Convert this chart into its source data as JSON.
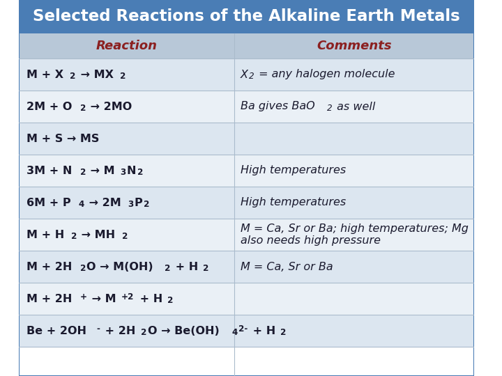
{
  "title": "Selected Reactions of the Alkaline Earth Metals",
  "title_bg": "#4a7db5",
  "title_color": "#ffffff",
  "header_bg": "#b8c8d8",
  "header_color": "#8b2020",
  "col1_header": "Reaction",
  "col2_header": "Comments",
  "row_bg_odd": "#dce6f0",
  "row_bg_even": "#eaf0f6",
  "text_color": "#1a1a2e",
  "comment_color": "#1a1a2e",
  "rows": [
    {
      "reaction_parts": [
        {
          "text": "M + X",
          "style": "bold"
        },
        {
          "text": "2",
          "style": "bold_sub"
        },
        {
          "text": " → MX",
          "style": "bold"
        },
        {
          "text": "2",
          "style": "bold_sub"
        }
      ],
      "comment_parts": [
        {
          "text": "X",
          "style": "italic"
        },
        {
          "text": "2",
          "style": "italic_sub"
        },
        {
          "text": " = any halogen molecule",
          "style": "italic"
        }
      ],
      "bg": "#dce6f0"
    },
    {
      "reaction_parts": [
        {
          "text": "2M + O",
          "style": "bold"
        },
        {
          "text": "2",
          "style": "bold_sub"
        },
        {
          "text": " → 2MO",
          "style": "bold"
        }
      ],
      "comment_parts": [
        {
          "text": "Ba gives BaO",
          "style": "italic"
        },
        {
          "text": "2",
          "style": "italic_sub"
        },
        {
          "text": " as well",
          "style": "italic"
        }
      ],
      "bg": "#eaf0f6"
    },
    {
      "reaction_parts": [
        {
          "text": "M + S → MS",
          "style": "bold"
        }
      ],
      "comment_parts": [],
      "bg": "#dce6f0"
    },
    {
      "reaction_parts": [
        {
          "text": "3M + N",
          "style": "bold"
        },
        {
          "text": "2",
          "style": "bold_sub"
        },
        {
          "text": " → M",
          "style": "bold"
        },
        {
          "text": "3",
          "style": "bold_sub"
        },
        {
          "text": "N",
          "style": "bold"
        },
        {
          "text": "2",
          "style": "bold_sub"
        }
      ],
      "comment_parts": [
        {
          "text": "High temperatures",
          "style": "italic"
        }
      ],
      "bg": "#eaf0f6"
    },
    {
      "reaction_parts": [
        {
          "text": "6M + P",
          "style": "bold"
        },
        {
          "text": "4",
          "style": "bold_sub"
        },
        {
          "text": " → 2M",
          "style": "bold"
        },
        {
          "text": "3",
          "style": "bold_sub"
        },
        {
          "text": "P",
          "style": "bold"
        },
        {
          "text": "2",
          "style": "bold_sub"
        }
      ],
      "comment_parts": [
        {
          "text": "High temperatures",
          "style": "italic"
        }
      ],
      "bg": "#dce6f0"
    },
    {
      "reaction_parts": [
        {
          "text": "M + H",
          "style": "bold"
        },
        {
          "text": "2",
          "style": "bold_sub"
        },
        {
          "text": " → MH",
          "style": "bold"
        },
        {
          "text": "2",
          "style": "bold_sub"
        }
      ],
      "comment_parts": [
        {
          "text": "M = Ca, Sr or Ba; high temperatures; Mg\nalso needs high pressure",
          "style": "italic"
        }
      ],
      "bg": "#eaf0f6"
    },
    {
      "reaction_parts": [
        {
          "text": "M + 2H",
          "style": "bold"
        },
        {
          "text": "2",
          "style": "bold_sub"
        },
        {
          "text": "O → M(OH)",
          "style": "bold"
        },
        {
          "text": "2",
          "style": "bold_sub"
        },
        {
          "text": " + H",
          "style": "bold"
        },
        {
          "text": "2",
          "style": "bold_sub"
        }
      ],
      "comment_parts": [
        {
          "text": "M = Ca, Sr or Ba",
          "style": "italic"
        }
      ],
      "bg": "#dce6f0"
    },
    {
      "reaction_parts": [
        {
          "text": "M + 2H",
          "style": "bold"
        },
        {
          "text": "+",
          "style": "bold_sup"
        },
        {
          "text": " → M",
          "style": "bold"
        },
        {
          "text": "+2",
          "style": "bold_sup"
        },
        {
          "text": " + H",
          "style": "bold"
        },
        {
          "text": "2",
          "style": "bold_sub"
        }
      ],
      "comment_parts": [],
      "bg": "#eaf0f6"
    },
    {
      "reaction_parts": [
        {
          "text": "Be + 2OH",
          "style": "bold"
        },
        {
          "text": "-",
          "style": "bold_sup"
        },
        {
          "text": " + 2H",
          "style": "bold"
        },
        {
          "text": "2",
          "style": "bold_sub"
        },
        {
          "text": "O → Be(OH)",
          "style": "bold"
        },
        {
          "text": "4",
          "style": "bold_sub"
        },
        {
          "text": "2-",
          "style": "bold_sup"
        },
        {
          "text": " + H",
          "style": "bold"
        },
        {
          "text": "2",
          "style": "bold_sub"
        }
      ],
      "comment_parts": [],
      "bg": "#dce6f0"
    }
  ]
}
